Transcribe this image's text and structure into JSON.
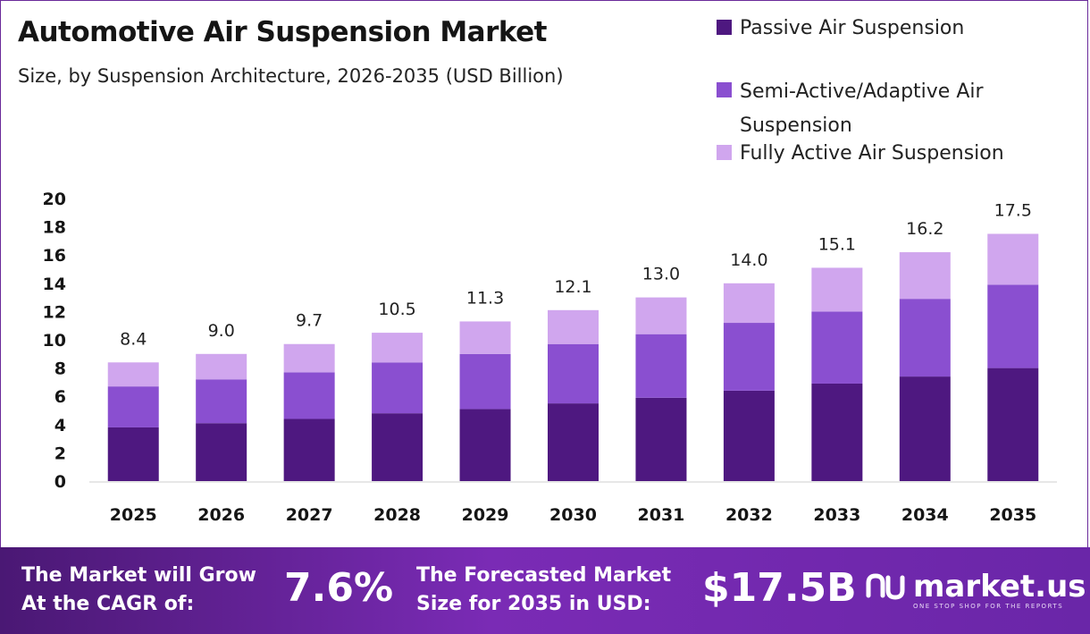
{
  "header": {
    "title": "Automotive Air Suspension Market",
    "subtitle": "Size, by Suspension Architecture, 2026-2035 (USD Billion)"
  },
  "legend": {
    "items": [
      {
        "label": "Passive Air Suspension",
        "color": "#4e1880"
      },
      {
        "label": "Semi-Active/Adaptive Air Suspension",
        "color": "#8a4fd0"
      },
      {
        "label": "Fully Active Air Suspension",
        "color": "#d0a6ee"
      }
    ]
  },
  "chart_data": {
    "type": "bar",
    "stacked": true,
    "categories": [
      "2025",
      "2026",
      "2027",
      "2028",
      "2029",
      "2030",
      "2031",
      "2032",
      "2033",
      "2034",
      "2035"
    ],
    "series": [
      {
        "name": "Passive Air Suspension",
        "color": "#4e1880",
        "values": [
          3.8,
          4.1,
          4.4,
          4.8,
          5.1,
          5.5,
          5.9,
          6.4,
          6.9,
          7.4,
          8.0
        ]
      },
      {
        "name": "Semi-Active/Adaptive Air Suspension",
        "color": "#8a4fd0",
        "values": [
          2.9,
          3.1,
          3.3,
          3.6,
          3.9,
          4.2,
          4.5,
          4.8,
          5.1,
          5.5,
          5.9
        ]
      },
      {
        "name": "Fully Active Air Suspension",
        "color": "#d0a6ee",
        "values": [
          1.7,
          1.8,
          2.0,
          2.1,
          2.3,
          2.4,
          2.6,
          2.8,
          3.1,
          3.3,
          3.6
        ]
      }
    ],
    "totals": [
      "8.4",
      "9.0",
      "9.7",
      "10.5",
      "11.3",
      "12.1",
      "13.0",
      "14.0",
      "15.1",
      "16.2",
      "17.5"
    ],
    "ylim": [
      0,
      20
    ],
    "yticks": [
      "0",
      "2",
      "4",
      "6",
      "8",
      "10",
      "12",
      "14",
      "16",
      "18",
      "20"
    ],
    "grid": false,
    "legend_position": "top-right"
  },
  "footer": {
    "cagr_label_line1": "The Market will Grow",
    "cagr_label_line2": "At the CAGR of:",
    "cagr_value": "7.6%",
    "forecast_label_line1": "The Forecasted Market",
    "forecast_label_line2": "Size for 2035 in USD:",
    "forecast_value": "$17.5B",
    "brand_name": "market.us",
    "brand_tagline": "ONE STOP SHOP FOR THE REPORTS"
  }
}
